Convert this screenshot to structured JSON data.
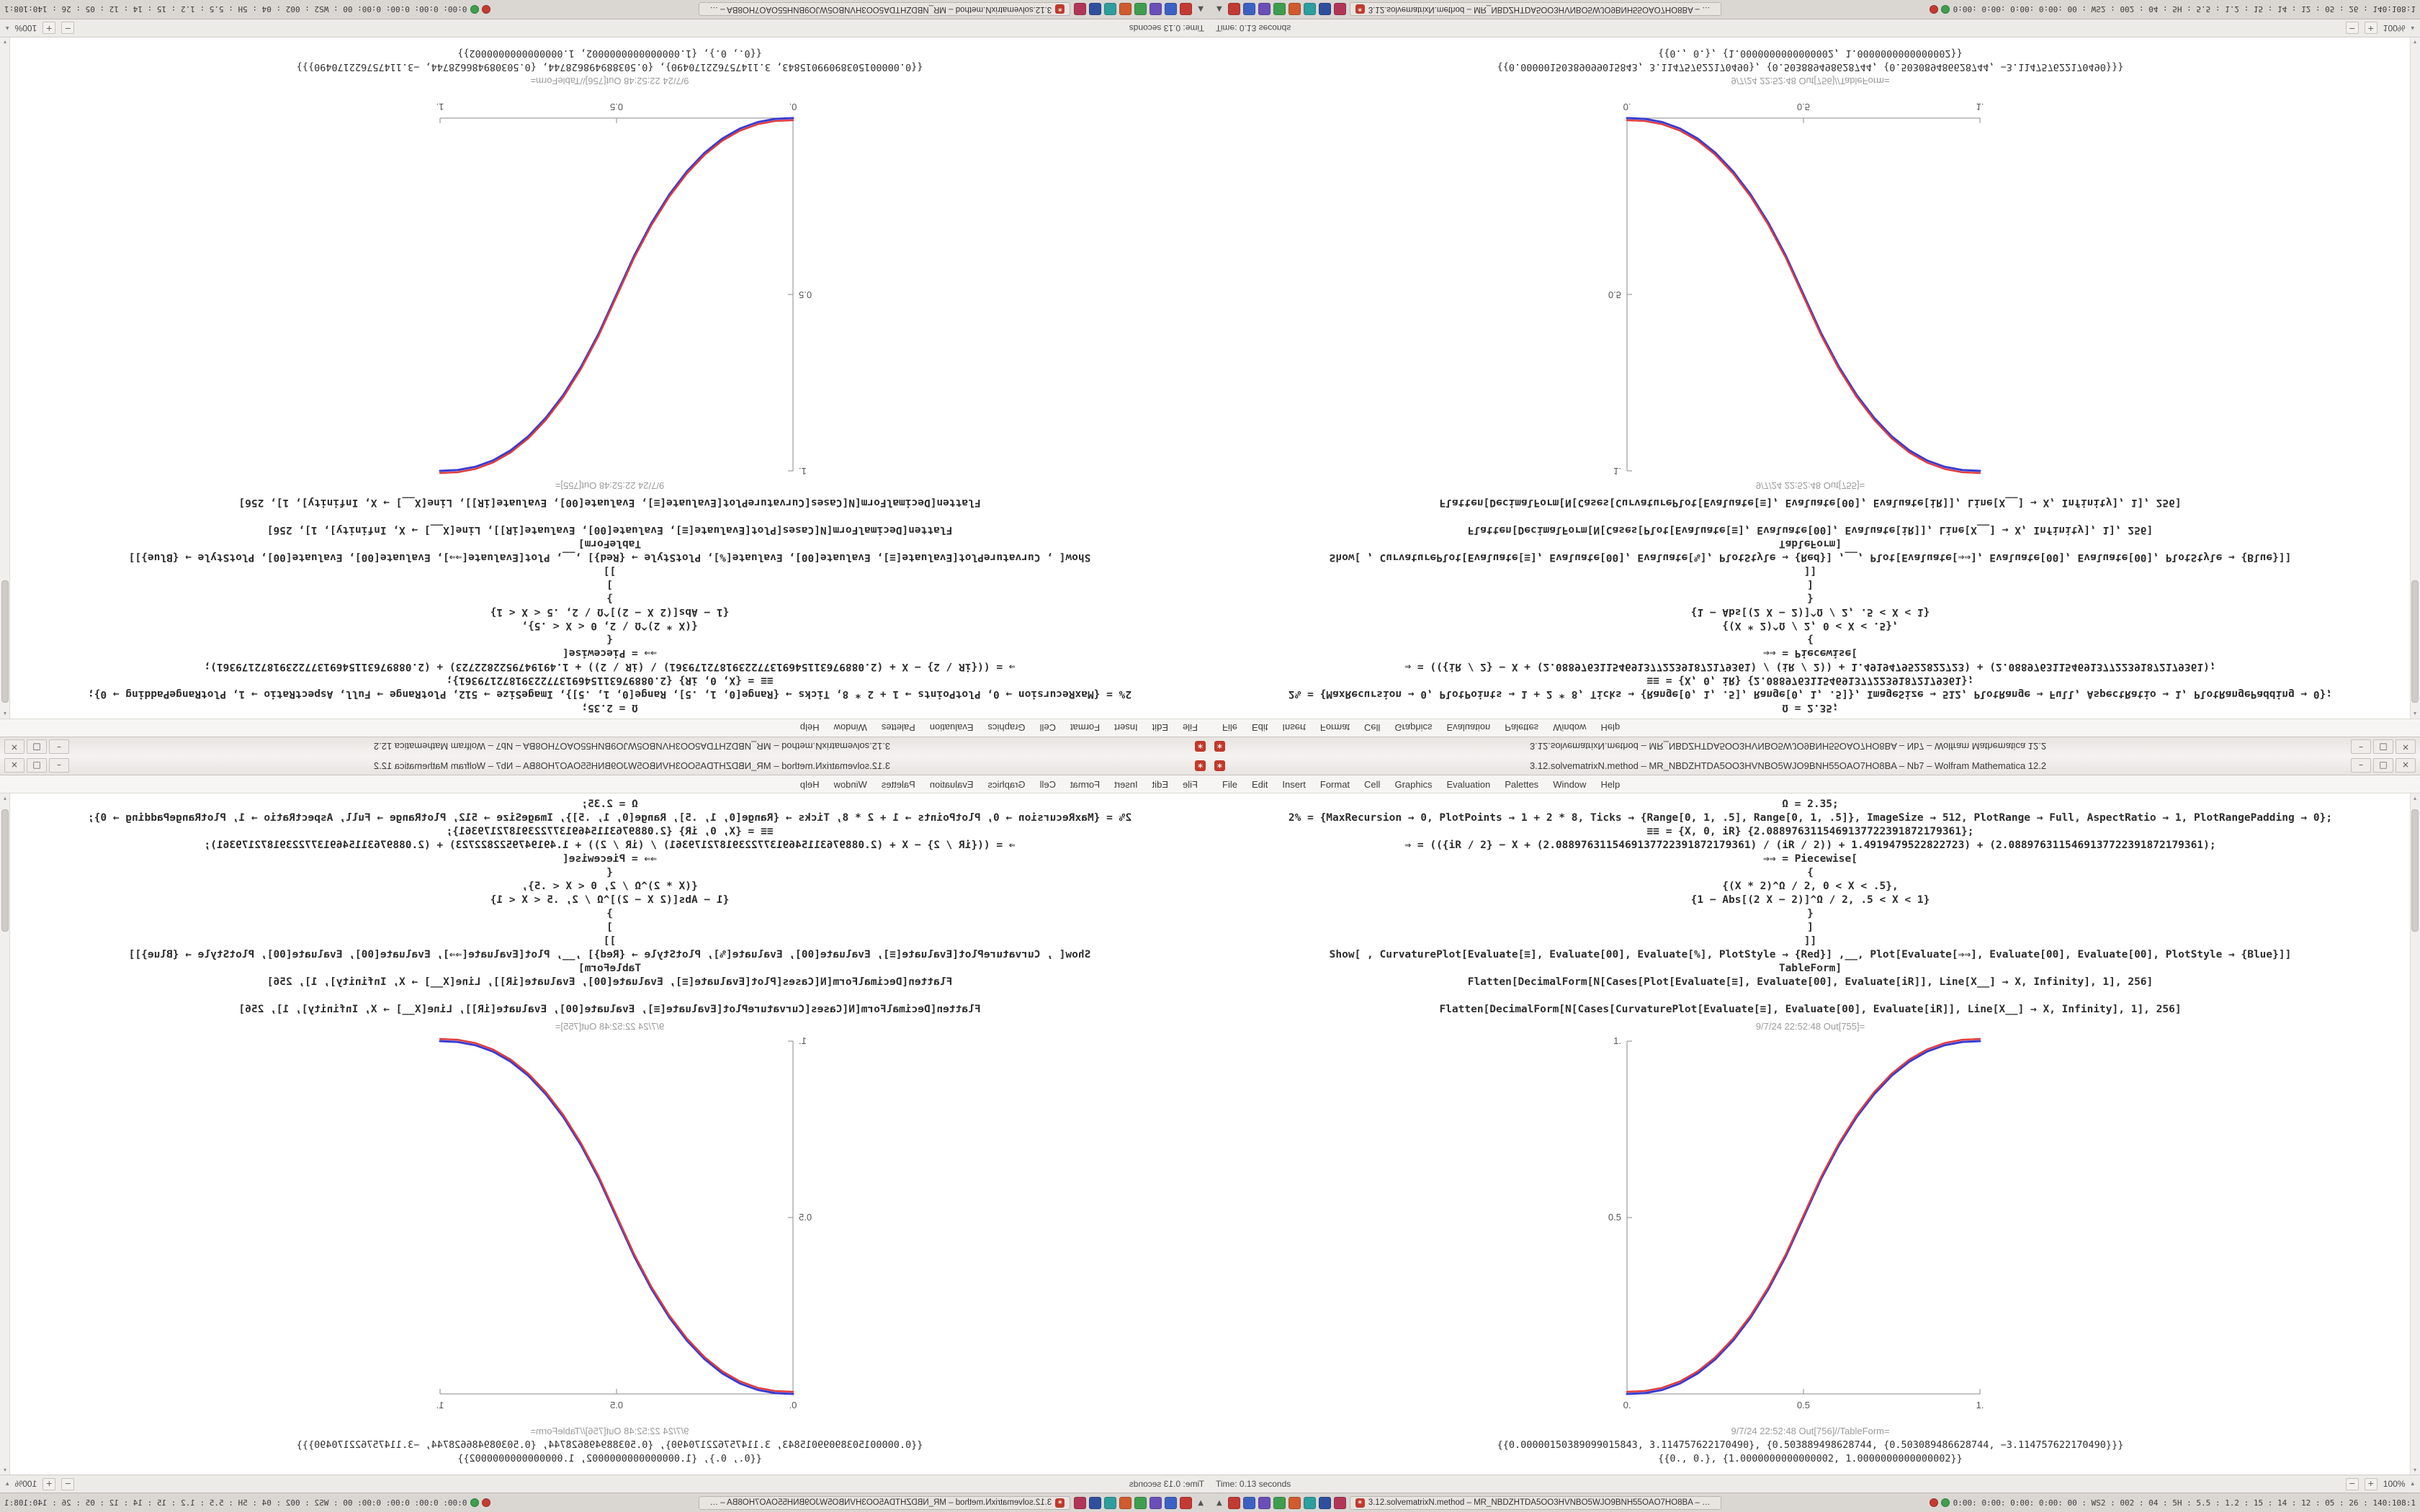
{
  "colors": {
    "app_red": "#c0392b",
    "curve_blue": "#3b3bd0",
    "curve_red": "#e03a3a",
    "taskbar_bg": "#dad7d3",
    "titlebar_bg": "#ece9e6"
  },
  "window": {
    "app_icon_glyph": "∗",
    "title": "3.12.solvematrixN.method – MR_NBDZHTDA5OO3HVNBO5WJO9BNH55OAO7HO8BA – Nb7 – Wolfram Mathematica 12.2",
    "controls": {
      "minimize": "–",
      "maximize": "□",
      "close": "×"
    },
    "menu": [
      "File",
      "Edit",
      "Insert",
      "Format",
      "Cell",
      "Graphics",
      "Evaluation",
      "Palettes",
      "Window",
      "Help"
    ],
    "cells": {
      "in_lines": [
        "Ω = 2.35;",
        "2% = {MaxRecursion → 0, PlotPoints → 1 + 2 * 8, Ticks → {Range[0, 1, .5], Range[0, 1, .5]}, ImageSize → 512, PlotRange → Full, AspectRatio → 1, PlotRangePadding → 0};",
        "≡≡ = {X, 0, iR} {2.0889763115469137722391872179361};",
        "⇒ = (({iR / 2} − X + (2.0889763115469137722391872179361) / (iR / 2)) + 1.4919479522822723) + (2.0889763115469137722391872179361);",
        "⇒⇒ = Piecewise[",
        "{",
        "{(X * 2)^Ω / 2, 0 < X < .5},",
        "{1 − Abs[(2 X − 2)]^Ω / 2, .5 < X < 1}",
        "}",
        "]",
        "]]",
        "Show[ , CurvaturePlot[Evaluate[≡], Evaluate[00], Evaluate[%], PlotStyle → {Red}] ,__, Plot[Evaluate[⇒⇒], Evaluate[00], Evaluate[00], PlotStyle → {Blue}]]",
        "TableForm]",
        "Flatten[DecimalForm[N[Cases[Plot[Evaluate[≡], Evaluate[00], Evaluate[iR]], Line[X__] → X, Infinity], 1], 256]",
        "",
        "Flatten[DecimalForm[N[Cases[CurvaturePlot[Evaluate[≡], Evaluate[00], Evaluate[iR]], Line[X__] → X, Infinity], 1], 256]"
      ],
      "out1_label": "9/7/24 22:52:48 Out[755]=",
      "out2_label": "9/7/24 22:52:48 Out[756]//TableForm=",
      "out2_lines": [
        "{{0.00000150389099015843, 3.114757622170490}, {0.503889498628744, {0.503089486628744, −3.114757622170490}}}",
        "{{0., 0.}, {1.0000000000000002, 1.0000000000000002}}"
      ]
    },
    "status": {
      "time": "Time: 0.13 seconds",
      "zoom_out": "−",
      "zoom_in": "+",
      "zoom": "100%",
      "caret": "▴"
    },
    "scrollbar": {
      "up": "▴",
      "down": "▾"
    }
  },
  "taskbar": {
    "start": "▲",
    "icons": [
      {
        "name": "app-red",
        "color": "#c23b33"
      },
      {
        "name": "app-blue",
        "color": "#3b62c2"
      },
      {
        "name": "app-indigo",
        "color": "#6a4fb8"
      },
      {
        "name": "app-green",
        "color": "#3f9e4d"
      },
      {
        "name": "app-orange",
        "color": "#cf5b2e"
      },
      {
        "name": "app-teal",
        "color": "#2e9e9e"
      },
      {
        "name": "app-navy",
        "color": "#2f4f9e"
      },
      {
        "name": "app-crimson",
        "color": "#b23557"
      }
    ],
    "window_button": {
      "label": "3.12.solvematrixN.method – MR_NBDZHTDA5OO3HVNBO5WJO9BNH55OAO7HO8BA – Nb7"
    },
    "tray_icons": [
      {
        "name": "tray-red",
        "color": "#c23b33"
      },
      {
        "name": "tray-green",
        "color": "#3f9e4d"
      }
    ],
    "tray": "0:00: 0:00: 0:00: 0:00: 00 : WS2 : 002 : 04 : 5H : 5.5 : 1.2 : 15 : 14 : 12 : 05 : 26 : 140:108:1"
  },
  "chart_data": {
    "type": "line",
    "title": "Out[755] piecewise sigmoid, red CurvaturePlot over blue Plot",
    "xlabel": "",
    "ylabel": "",
    "xlim": [
      0,
      1
    ],
    "ylim": [
      0,
      1
    ],
    "grid": false,
    "legend": "none",
    "x": [
      0,
      0.05,
      0.1,
      0.15,
      0.2,
      0.25,
      0.3,
      0.35,
      0.4,
      0.45,
      0.5,
      0.55,
      0.6,
      0.65,
      0.7,
      0.75,
      0.8,
      0.85,
      0.9,
      0.95,
      1
    ],
    "series": [
      {
        "name": "Plot (Blue)",
        "color": "#3b3bd0",
        "width": 3,
        "dy": 0,
        "values": [
          0,
          0.0022,
          0.0114,
          0.0295,
          0.058,
          0.098,
          0.1506,
          0.2162,
          0.296,
          0.3903,
          0.5,
          0.6097,
          0.704,
          0.7838,
          0.8494,
          0.902,
          0.942,
          0.9705,
          0.9886,
          0.9978,
          1
        ]
      },
      {
        "name": "CurvaturePlot (Red)",
        "color": "#e03a3a",
        "width": 2.4,
        "dy": -3,
        "values": [
          0,
          0.0022,
          0.0114,
          0.0295,
          0.058,
          0.098,
          0.1506,
          0.2162,
          0.296,
          0.3903,
          0.5,
          0.6097,
          0.704,
          0.7838,
          0.8494,
          0.902,
          0.942,
          0.9705,
          0.9886,
          0.9978,
          1
        ]
      }
    ],
    "xticks": [
      {
        "v": 0,
        "label": "0."
      },
      {
        "v": 0.5,
        "label": "0.5"
      },
      {
        "v": 1,
        "label": "1."
      }
    ],
    "yticks": [
      {
        "v": 0.5,
        "label": "0.5"
      },
      {
        "v": 1,
        "label": "1."
      }
    ]
  }
}
